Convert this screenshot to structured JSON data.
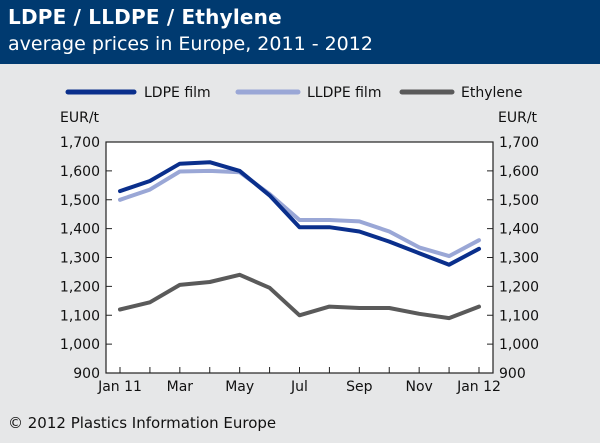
{
  "header": {
    "title": "LDPE / LLDPE / Ethylene",
    "subtitle": "average prices in Europe, 2011 - 2012"
  },
  "footer": {
    "copyright": "© 2012 Plastics Information Europe"
  },
  "colors": {
    "header_bg": "#003a70",
    "ldpe": "#0a2f8c",
    "lldpe": "#9aa7d6",
    "ethylene": "#5a5a5a",
    "plot_bg": "#ffffff",
    "page_bg": "#e6e7e8"
  },
  "chart_data": {
    "type": "line",
    "title": "LDPE / LLDPE / Ethylene",
    "subtitle": "average prices in Europe, 2011 - 2012",
    "ylabel_left": "EUR/t",
    "ylabel_right": "EUR/t",
    "ylim": [
      900,
      1700
    ],
    "yticks": [
      900,
      1000,
      1100,
      1200,
      1300,
      1400,
      1500,
      1600,
      1700
    ],
    "ytick_labels": [
      "900",
      "1,000",
      "1,100",
      "1,200",
      "1,300",
      "1,400",
      "1,500",
      "1,600",
      "1,700"
    ],
    "x": [
      "Jan 11",
      "Feb 11",
      "Mar 11",
      "Apr 11",
      "May 11",
      "Jun 11",
      "Jul 11",
      "Aug 11",
      "Sep 11",
      "Oct 11",
      "Nov 11",
      "Dec 11",
      "Jan 12"
    ],
    "xtick_labels": [
      "Jan 11",
      "",
      "Mar",
      "",
      "May",
      "",
      "Jul",
      "",
      "Sep",
      "",
      "Nov",
      "",
      "Jan 12"
    ],
    "grid": false,
    "legend": "top",
    "series": [
      {
        "name": "LDPE film",
        "values": [
          1530,
          1565,
          1625,
          1630,
          1600,
          1515,
          1405,
          1405,
          1390,
          1355,
          1315,
          1275,
          1330
        ]
      },
      {
        "name": "LLDPE film",
        "values": [
          1500,
          1535,
          1598,
          1600,
          1595,
          1520,
          1430,
          1430,
          1425,
          1390,
          1335,
          1305,
          1360
        ]
      },
      {
        "name": "Ethylene",
        "values": [
          1120,
          1145,
          1205,
          1215,
          1240,
          1195,
          1100,
          1130,
          1125,
          1125,
          1105,
          1090,
          1130
        ]
      }
    ]
  }
}
